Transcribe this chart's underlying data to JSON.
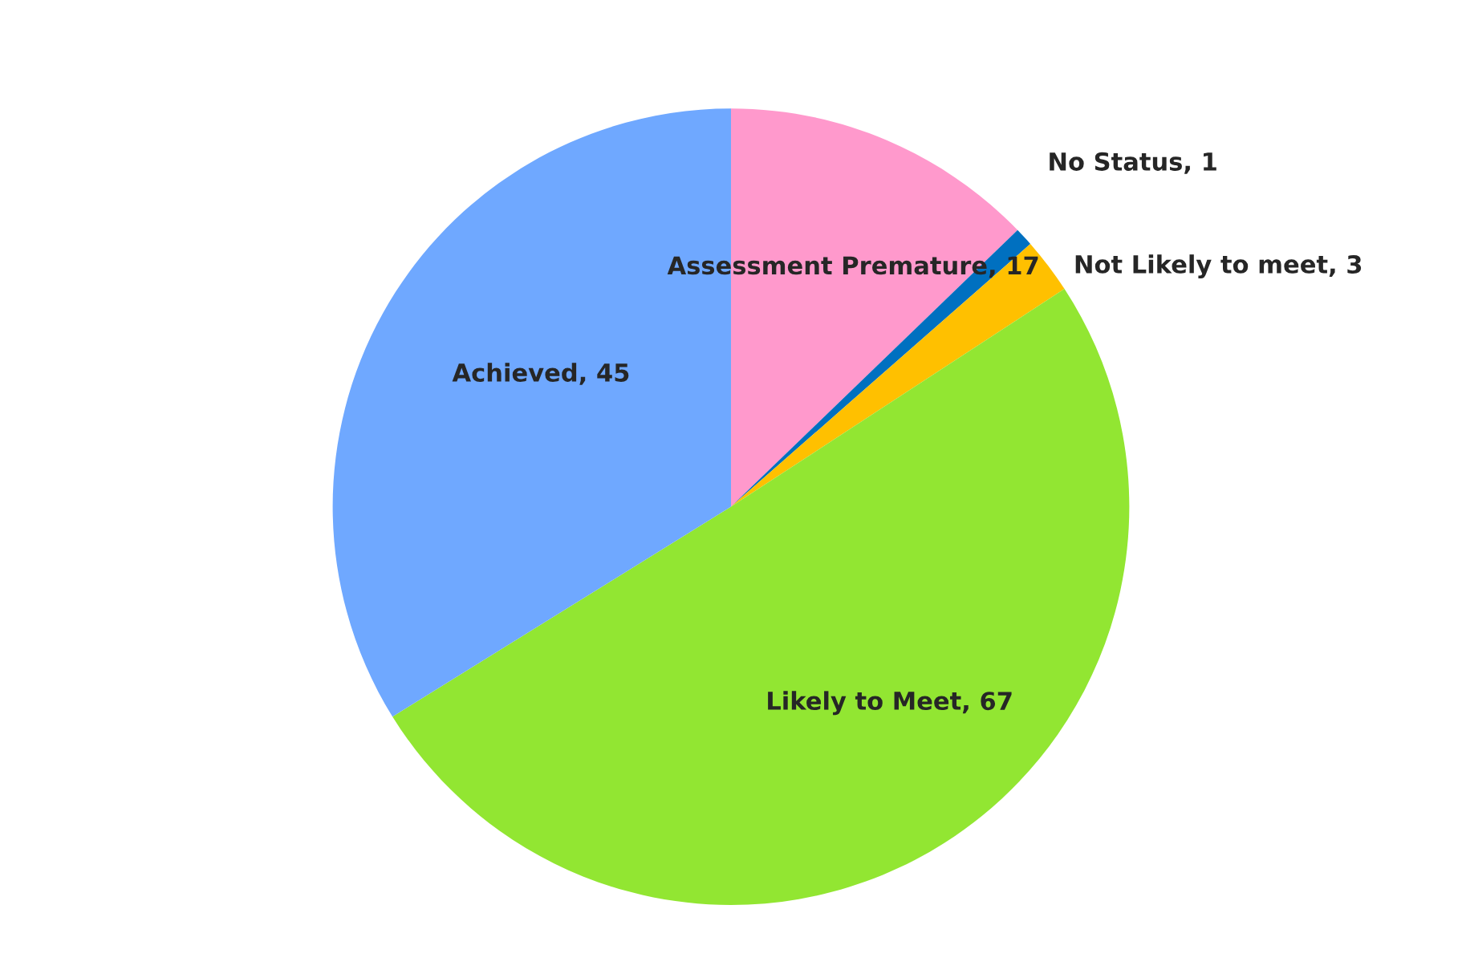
{
  "chart_data": {
    "type": "pie",
    "categories": [
      "Assessment Premature",
      "No Status",
      "Not Likely to meet",
      "Likely to Meet",
      "Achieved"
    ],
    "values": [
      17,
      1,
      3,
      67,
      45
    ],
    "colors": [
      "#ff99cc",
      "#0070c0",
      "#ffc000",
      "#92e632",
      "#6fa8ff"
    ],
    "value_labels": [
      ", 17",
      ", 1",
      ", 3",
      ", 67",
      ", 45"
    ]
  }
}
